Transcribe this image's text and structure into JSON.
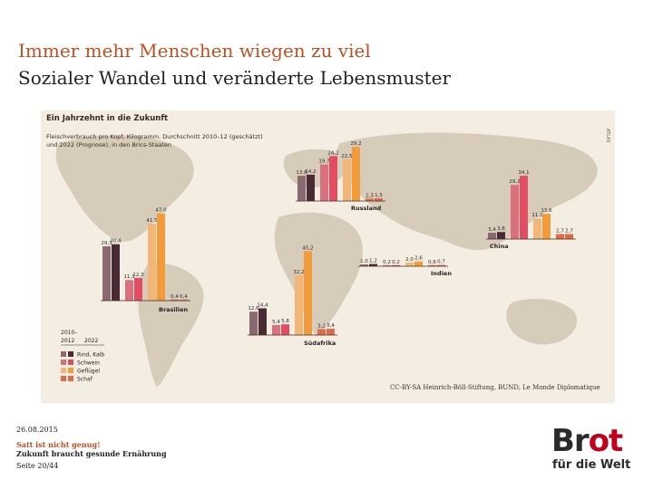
{
  "slide": {
    "title_line1": "Immer mehr Menschen wiegen zu viel",
    "title_line2": "Sozialer Wandel und veränderte Lebensmuster",
    "credit": "CC-BY-SA Heinrich-Böll-Stiftung, BUND, Le Monde Diplomatique",
    "footer_date": "26.08.2015",
    "footer_sub1": "Satt ist nicht genug!",
    "footer_sub2": "Zukunft braucht gesunde Ernährung",
    "footer_page": "Seite 20/44",
    "logo_brot_br": "Br",
    "logo_brot_ot": "ot",
    "logo_tagline": "für die Welt"
  },
  "colors": {
    "title_accent": "#c0501f",
    "rind": "#8a6a70",
    "rind_later": "#4a2a35",
    "schwein": "#d9707e",
    "schwein_later": "#e24d62",
    "gefluegel": "#f2b778",
    "gefluegel_later": "#f39a3a",
    "schaf": "#e06a45",
    "map_bg": "#f4ede2",
    "land": "#d7ccb9"
  },
  "chart_data": {
    "type": "bar",
    "title": "Ein Jahrzehnt in die Zukunft",
    "subtitle_line1": "Fleischverbrauch pro Kopf, Kilogramm, Durchschnitt 2010–12 (geschätzt)",
    "subtitle_line2": "und 2022 (Prognose), in den Brics-Staaten",
    "side_label": "ATLAS",
    "period_labels": [
      "2010–",
      "2012",
      "2022"
    ],
    "legend": [
      "Rind, Kalb",
      "Schwein",
      "Geflügel",
      "Schaf"
    ],
    "countries": [
      {
        "name": "Brasilien",
        "values": [
          [
            29.3,
            30.4
          ],
          [
            11.1,
            12.3
          ],
          [
            41.5,
            47.0
          ],
          [
            0.4,
            0.4
          ]
        ]
      },
      {
        "name": "Russland",
        "values": [
          [
            13.6,
            14.2
          ],
          [
            19.7,
            24.2
          ],
          [
            22.5,
            29.2
          ],
          [
            1.3,
            1.5
          ]
        ]
      },
      {
        "name": "Indien",
        "values": [
          [
            1.0,
            1.2
          ],
          [
            0.2,
            0.2
          ],
          [
            2.0,
            2.6
          ],
          [
            0.6,
            0.7
          ]
        ]
      },
      {
        "name": "China",
        "values": [
          [
            3.4,
            3.8
          ],
          [
            29.2,
            34.1
          ],
          [
            11.1,
            13.6
          ],
          [
            2.7,
            2.7
          ]
        ]
      },
      {
        "name": "Südafrika",
        "values": [
          [
            12.6,
            14.4
          ],
          [
            5.4,
            5.8
          ],
          [
            32.2,
            45.2
          ],
          [
            3.2,
            3.4
          ]
        ]
      }
    ]
  }
}
